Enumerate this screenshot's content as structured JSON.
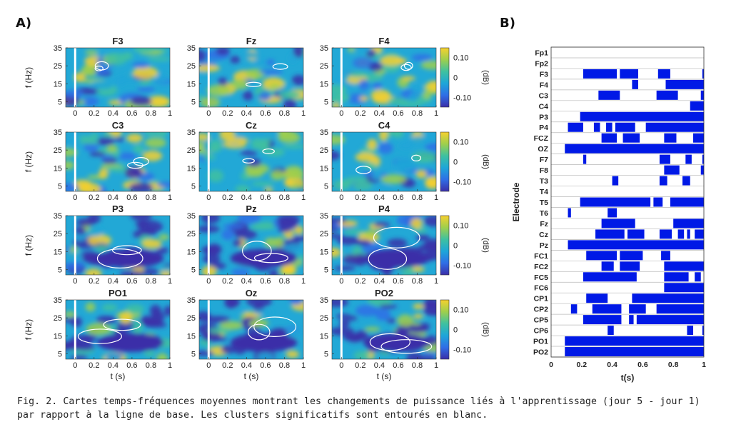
{
  "panel_a_label": "A)",
  "panel_b_label": "B)",
  "caption": "Fig. 2. Cartes temps-fréquences moyennes montrant les changements de puissance liés à l'apprentissage (jour 5 - jour 1) par rapport à la ligne de base. Les clusters significatifs sont entourés en blanc.",
  "chart_data": [
    {
      "type": "heatmap",
      "panels": [
        "F3",
        "Fz",
        "F4",
        "C3",
        "Cz",
        "C4",
        "P3",
        "Pz",
        "P4",
        "PO1",
        "Oz",
        "PO2"
      ],
      "ylabel": "f (Hz)",
      "xlabel": "t (s)",
      "x_ticks": [
        "0",
        "0.2",
        "0.4",
        "0.6",
        "0.8",
        "1"
      ],
      "y_ticks": [
        "35",
        "25",
        "15",
        "5"
      ],
      "colorbar_label": "(dB)",
      "colorbar_ticks": [
        "0.10",
        "0",
        "-0.10"
      ],
      "colormap": [
        "#3b2fa8",
        "#2f6ee6",
        "#1ea6d8",
        "#3fc1a0",
        "#9fcf4c",
        "#f6d02f"
      ],
      "baseline_marker_color": "#ffffff",
      "cluster_outline_color": "#ffffff",
      "xlim": [
        -0.1,
        1
      ],
      "ylim": [
        2,
        35
      ]
    },
    {
      "type": "bar",
      "title": "",
      "xlabel": "t(s)",
      "ylabel": "Electrode",
      "xlim": [
        0,
        1
      ],
      "x_ticks": [
        "0",
        "0.2",
        "0.4",
        "0.6",
        "0.8",
        "1"
      ],
      "bar_color": "#0019e6",
      "categories": [
        "Fp1",
        "Fp2",
        "F3",
        "F4",
        "C3",
        "C4",
        "P3",
        "P4",
        "FCZ",
        "OZ",
        "F7",
        "F8",
        "T3",
        "T4",
        "T5",
        "T6",
        "Fz",
        "Cz",
        "Pz",
        "FC1",
        "FC2",
        "FC5",
        "FC6",
        "CP1",
        "CP2",
        "CP5",
        "CP6",
        "PO1",
        "PO2"
      ],
      "intervals": [
        [],
        [],
        [
          [
            0.21,
            0.43
          ],
          [
            0.45,
            0.57
          ],
          [
            0.7,
            0.78
          ],
          [
            0.99,
            1.0
          ]
        ],
        [
          [
            0.53,
            0.57
          ],
          [
            0.75,
            1.0
          ]
        ],
        [
          [
            0.31,
            0.45
          ],
          [
            0.69,
            0.83
          ],
          [
            0.98,
            1.0
          ]
        ],
        [
          [
            0.91,
            1.0
          ]
        ],
        [
          [
            0.19,
            1.0
          ]
        ],
        [
          [
            0.11,
            0.21
          ],
          [
            0.28,
            0.32
          ],
          [
            0.36,
            0.4
          ],
          [
            0.42,
            0.55
          ],
          [
            0.62,
            1.0
          ]
        ],
        [
          [
            0.33,
            0.43
          ],
          [
            0.47,
            0.58
          ],
          [
            0.74,
            0.82
          ],
          [
            0.93,
            1.0
          ]
        ],
        [
          [
            0.09,
            1.0
          ]
        ],
        [
          [
            0.21,
            0.23
          ],
          [
            0.71,
            0.78
          ],
          [
            0.88,
            0.92
          ],
          [
            0.99,
            1.0
          ]
        ],
        [
          [
            0.74,
            0.84
          ],
          [
            0.98,
            1.0
          ]
        ],
        [
          [
            0.4,
            0.44
          ],
          [
            0.71,
            0.76
          ],
          [
            0.86,
            0.91
          ]
        ],
        [],
        [
          [
            0.19,
            0.65
          ],
          [
            0.67,
            0.73
          ],
          [
            0.78,
            1.0
          ]
        ],
        [
          [
            0.11,
            0.13
          ],
          [
            0.37,
            0.43
          ]
        ],
        [
          [
            0.33,
            0.55
          ],
          [
            0.8,
            1.0
          ]
        ],
        [
          [
            0.29,
            0.48
          ],
          [
            0.5,
            0.61
          ],
          [
            0.71,
            0.79
          ],
          [
            0.83,
            0.87
          ],
          [
            0.89,
            0.91
          ],
          [
            0.94,
            1.0
          ]
        ],
        [
          [
            0.11,
            1.0
          ]
        ],
        [
          [
            0.23,
            0.43
          ],
          [
            0.45,
            0.6
          ],
          [
            0.72,
            0.78
          ]
        ],
        [
          [
            0.33,
            0.41
          ],
          [
            0.45,
            0.58
          ],
          [
            0.74,
            1.0
          ]
        ],
        [
          [
            0.21,
            0.56
          ],
          [
            0.74,
            0.9
          ],
          [
            0.94,
            0.98
          ]
        ],
        [
          [
            0.74,
            1.0
          ]
        ],
        [
          [
            0.23,
            0.37
          ],
          [
            0.53,
            1.0
          ]
        ],
        [
          [
            0.13,
            0.17
          ],
          [
            0.27,
            0.46
          ],
          [
            0.51,
            0.62
          ],
          [
            0.69,
            1.0
          ]
        ],
        [
          [
            0.21,
            0.46
          ],
          [
            0.51,
            0.54
          ],
          [
            0.56,
            1.0
          ]
        ],
        [
          [
            0.37,
            0.41
          ],
          [
            0.89,
            0.93
          ],
          [
            0.99,
            1.0
          ]
        ],
        [
          [
            0.09,
            1.0
          ]
        ],
        [
          [
            0.09,
            1.0
          ]
        ]
      ]
    }
  ]
}
